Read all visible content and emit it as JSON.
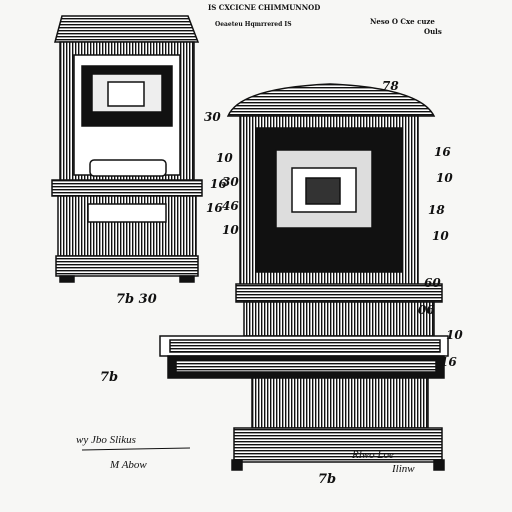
{
  "header": {
    "title": "IS CXCICNE CHIMMUNNOD",
    "subtitle": "Oeaeteu Hqmrrered IS",
    "right_title": "Neso O Cxe cuze",
    "right_sub": "Ouls"
  },
  "labels": [
    "30",
    "10",
    "16",
    "78",
    "30",
    "46",
    "16",
    "10",
    "16",
    "10",
    "18",
    "10",
    "60",
    "06",
    "10",
    "16"
  ],
  "figures": [
    "7b  30",
    "7b",
    "7b"
  ],
  "signatures": [
    "wy Jbo Slikus",
    "M Abow",
    "Rlwo Loe",
    "Ilinw"
  ]
}
